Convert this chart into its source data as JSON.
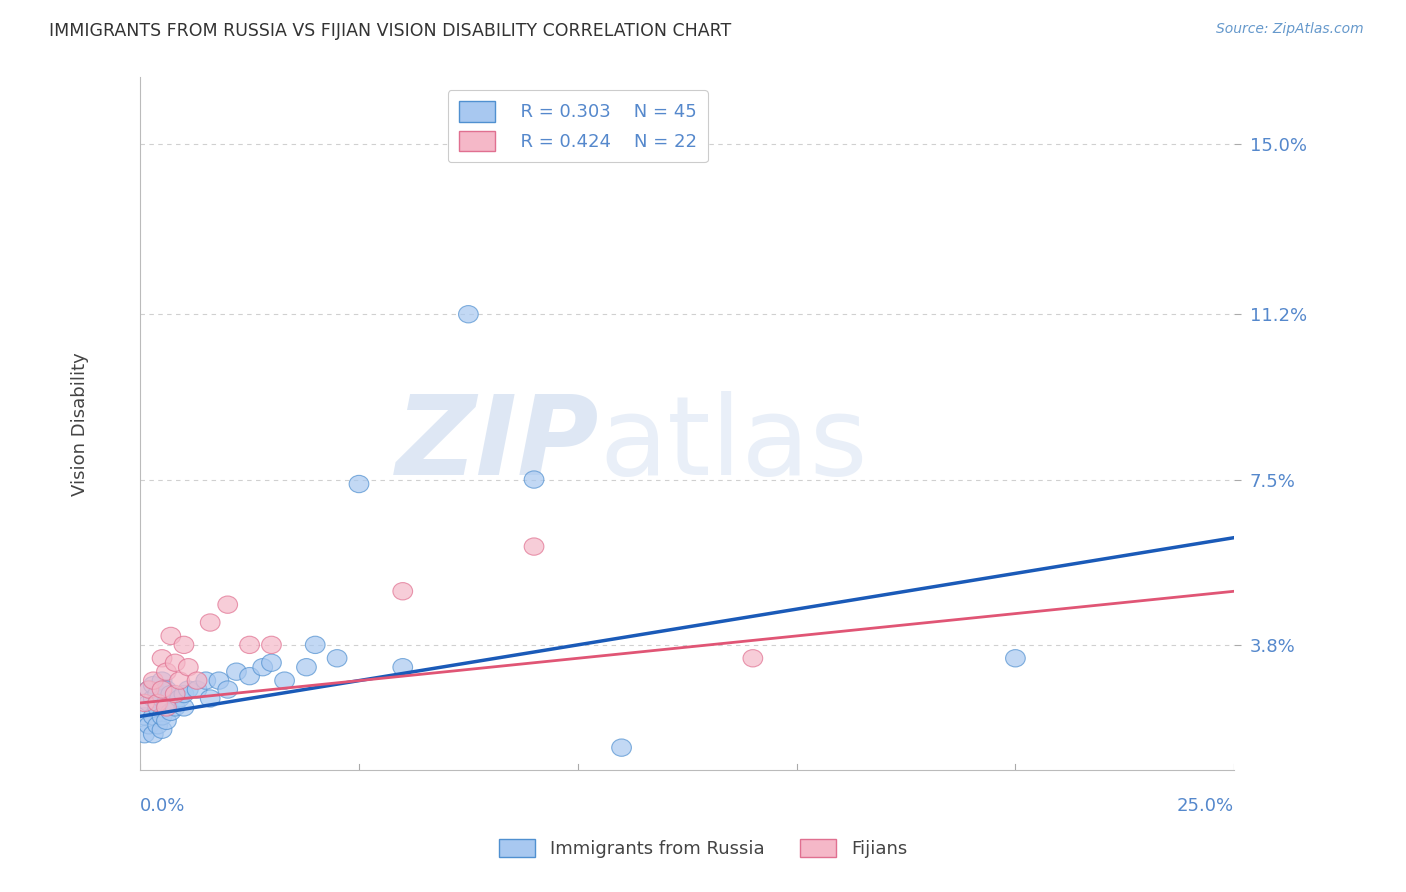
{
  "title": "IMMIGRANTS FROM RUSSIA VS FIJIAN VISION DISABILITY CORRELATION CHART",
  "source": "Source: ZipAtlas.com",
  "ylabel": "Vision Disability",
  "yticks": [
    0.038,
    0.075,
    0.112,
    0.15
  ],
  "ytick_labels": [
    "3.8%",
    "7.5%",
    "11.2%",
    "15.0%"
  ],
  "xlim": [
    0.0,
    0.25
  ],
  "ylim": [
    0.01,
    0.165
  ],
  "blue_scatter_x": [
    0.001,
    0.001,
    0.002,
    0.002,
    0.002,
    0.003,
    0.003,
    0.003,
    0.003,
    0.004,
    0.004,
    0.004,
    0.005,
    0.005,
    0.005,
    0.005,
    0.006,
    0.006,
    0.006,
    0.007,
    0.007,
    0.008,
    0.009,
    0.01,
    0.01,
    0.011,
    0.013,
    0.015,
    0.016,
    0.018,
    0.02,
    0.022,
    0.025,
    0.028,
    0.03,
    0.033,
    0.038,
    0.04,
    0.045,
    0.05,
    0.06,
    0.075,
    0.09,
    0.11,
    0.2
  ],
  "blue_scatter_y": [
    0.022,
    0.018,
    0.02,
    0.025,
    0.028,
    0.018,
    0.022,
    0.026,
    0.029,
    0.02,
    0.024,
    0.027,
    0.019,
    0.022,
    0.026,
    0.03,
    0.021,
    0.025,
    0.028,
    0.023,
    0.027,
    0.024,
    0.026,
    0.024,
    0.027,
    0.028,
    0.028,
    0.03,
    0.026,
    0.03,
    0.028,
    0.032,
    0.031,
    0.033,
    0.034,
    0.03,
    0.033,
    0.038,
    0.035,
    0.074,
    0.033,
    0.112,
    0.075,
    0.015,
    0.035
  ],
  "pink_scatter_x": [
    0.001,
    0.002,
    0.003,
    0.004,
    0.005,
    0.005,
    0.006,
    0.006,
    0.007,
    0.008,
    0.008,
    0.009,
    0.01,
    0.011,
    0.013,
    0.016,
    0.02,
    0.025,
    0.03,
    0.06,
    0.09,
    0.14
  ],
  "pink_scatter_y": [
    0.025,
    0.028,
    0.03,
    0.025,
    0.028,
    0.035,
    0.024,
    0.032,
    0.04,
    0.027,
    0.034,
    0.03,
    0.038,
    0.033,
    0.03,
    0.043,
    0.047,
    0.038,
    0.038,
    0.05,
    0.06,
    0.035
  ],
  "blue_color": "#a8c8f0",
  "pink_color": "#f5b8c8",
  "blue_edge_color": "#5090d0",
  "pink_edge_color": "#e07090",
  "blue_line_color": "#1a5ab8",
  "pink_line_color": "#e05575",
  "blue_line_x0": 0.0,
  "blue_line_y0": 0.022,
  "blue_line_x1": 0.25,
  "blue_line_y1": 0.062,
  "pink_line_x0": 0.0,
  "pink_line_y0": 0.025,
  "pink_line_x1": 0.25,
  "pink_line_y1": 0.05,
  "legend_R_blue": "R = 0.303",
  "legend_N_blue": "N = 45",
  "legend_R_pink": "R = 0.424",
  "legend_N_pink": "N = 22",
  "legend_label_blue": "Immigrants from Russia",
  "legend_label_pink": "Fijians",
  "background_color": "#ffffff",
  "grid_color": "#d0d0d0",
  "title_color": "#333333",
  "source_color": "#6699cc",
  "tick_label_color": "#5588cc"
}
